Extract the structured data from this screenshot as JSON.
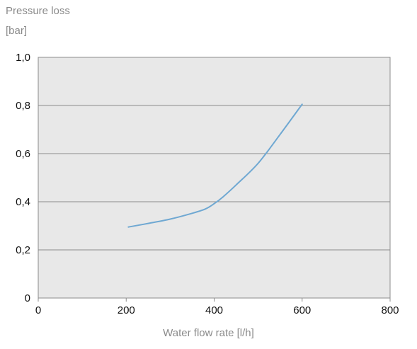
{
  "chart_data": {
    "type": "line",
    "ylabel_lines": [
      "Pressure loss",
      "[bar]"
    ],
    "xlabel": "Water flow rate [l/h]",
    "xlim": [
      0,
      800
    ],
    "ylim": [
      0,
      1.0
    ],
    "x_ticks": [
      {
        "value": 0,
        "label": "0"
      },
      {
        "value": 200,
        "label": "200"
      },
      {
        "value": 400,
        "label": "400"
      },
      {
        "value": 600,
        "label": "600"
      },
      {
        "value": 800,
        "label": "800"
      }
    ],
    "y_ticks": [
      {
        "value": 0,
        "label": "0"
      },
      {
        "value": 0.2,
        "label": "0,2"
      },
      {
        "value": 0.4,
        "label": "0,4"
      },
      {
        "value": 0.6,
        "label": "0,6"
      },
      {
        "value": 0.8,
        "label": "0,8"
      },
      {
        "value": 1.0,
        "label": "1,0"
      }
    ],
    "grid": "horizontal",
    "colors": {
      "plot_background": "#e8e8e8",
      "line": "#6fa8d2",
      "grid": "#8c8c8c",
      "frame": "#8c8c8c"
    },
    "series": [
      {
        "x": [
          205,
          250,
          300,
          350,
          380,
          400,
          420,
          450,
          500,
          550,
          600
        ],
        "y": [
          0.295,
          0.31,
          0.328,
          0.352,
          0.37,
          0.392,
          0.42,
          0.47,
          0.56,
          0.68,
          0.805
        ]
      }
    ]
  }
}
